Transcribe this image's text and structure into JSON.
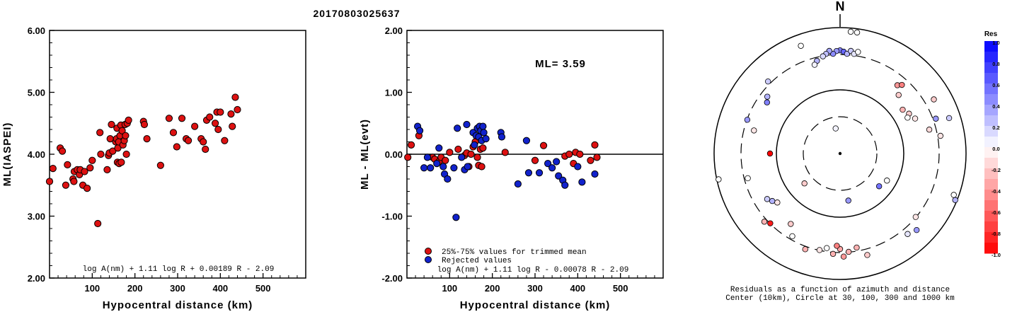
{
  "title": "20170803025637",
  "colors": {
    "accepted": "#dd1111",
    "rejected": "#1122cc",
    "axis": "#000000"
  },
  "chart_data": [
    {
      "type": "scatter",
      "xlabel": "Hypocentral distance (km)",
      "ylabel": "ML(IASPEI)",
      "xlim": [
        0,
        600
      ],
      "ylim": [
        2.0,
        6.0
      ],
      "xticks": [
        "100",
        "200",
        "300",
        "400",
        "500"
      ],
      "yticks": [
        "2.00",
        "3.00",
        "4.00",
        "5.00",
        "6.00"
      ],
      "formula": "log A(nm) + 1.11 log R + 0.00189 R - 2.09",
      "series": [
        {
          "color": "red",
          "points": [
            [
              0,
              3.56
            ],
            [
              8,
              3.77
            ],
            [
              25,
              4.1
            ],
            [
              30,
              4.05
            ],
            [
              38,
              3.5
            ],
            [
              42,
              3.83
            ],
            [
              55,
              3.6
            ],
            [
              57,
              3.56
            ],
            [
              58,
              3.72
            ],
            [
              65,
              3.75
            ],
            [
              70,
              3.67
            ],
            [
              72,
              3.75
            ],
            [
              78,
              3.5
            ],
            [
              82,
              3.72
            ],
            [
              88,
              3.45
            ],
            [
              95,
              3.78
            ],
            [
              100,
              3.9
            ],
            [
              113,
              2.88
            ],
            [
              118,
              4.35
            ],
            [
              120,
              4.0
            ],
            [
              135,
              3.75
            ],
            [
              138,
              3.98
            ],
            [
              140,
              4.02
            ],
            [
              142,
              4.25
            ],
            [
              145,
              4.48
            ],
            [
              148,
              4.05
            ],
            [
              155,
              4.2
            ],
            [
              157,
              4.25
            ],
            [
              158,
              4.42
            ],
            [
              159,
              3.87
            ],
            [
              160,
              4.1
            ],
            [
              162,
              4.2
            ],
            [
              163,
              3.85
            ],
            [
              165,
              4.3
            ],
            [
              167,
              4.47
            ],
            [
              168,
              3.87
            ],
            [
              170,
              4.38
            ],
            [
              172,
              4.15
            ],
            [
              175,
              4.22
            ],
            [
              177,
              4.48
            ],
            [
              178,
              4.3
            ],
            [
              180,
              4.0
            ],
            [
              182,
              4.5
            ],
            [
              185,
              4.55
            ],
            [
              220,
              4.53
            ],
            [
              222,
              4.48
            ],
            [
              228,
              4.25
            ],
            [
              260,
              3.82
            ],
            [
              280,
              4.58
            ],
            [
              290,
              4.35
            ],
            [
              298,
              4.12
            ],
            [
              310,
              4.58
            ],
            [
              320,
              4.25
            ],
            [
              325,
              4.22
            ],
            [
              340,
              4.45
            ],
            [
              355,
              4.25
            ],
            [
              360,
              4.2
            ],
            [
              365,
              4.08
            ],
            [
              368,
              4.55
            ],
            [
              375,
              4.6
            ],
            [
              388,
              4.5
            ],
            [
              392,
              4.68
            ],
            [
              395,
              4.4
            ],
            [
              400,
              4.68
            ],
            [
              410,
              4.22
            ],
            [
              425,
              4.65
            ],
            [
              428,
              4.45
            ],
            [
              435,
              4.92
            ],
            [
              440,
              4.72
            ]
          ]
        }
      ]
    },
    {
      "type": "scatter",
      "xlabel": "Hypocentral distance (km)",
      "ylabel": "ML - ML(evt)",
      "xlim": [
        0,
        600
      ],
      "ylim": [
        -2.0,
        2.0
      ],
      "xticks": [
        "100",
        "200",
        "300",
        "400",
        "500"
      ],
      "yticks": [
        "-2.00",
        "-1.00",
        "0.00",
        "1.00",
        "2.00"
      ],
      "annotation": "ML= 3.59",
      "formula": "log A(nm) + 1.11 log R - 0.00078 R - 2.09",
      "legend": [
        "25%-75% values for trimmed mean",
        "Rejected values"
      ],
      "series": [
        {
          "name": "25%-75% values for trimmed mean",
          "color": "red",
          "points": [
            [
              2,
              -0.05
            ],
            [
              10,
              0.15
            ],
            [
              28,
              0.3
            ],
            [
              60,
              -0.05
            ],
            [
              65,
              -0.08
            ],
            [
              75,
              -0.12
            ],
            [
              80,
              -0.05
            ],
            [
              90,
              -0.1
            ],
            [
              100,
              0.03
            ],
            [
              120,
              0.08
            ],
            [
              135,
              -0.02
            ],
            [
              140,
              0.02
            ],
            [
              145,
              -0.2
            ],
            [
              150,
              0.0
            ],
            [
              155,
              0.12
            ],
            [
              160,
              0.2
            ],
            [
              165,
              -0.05
            ],
            [
              168,
              -0.18
            ],
            [
              172,
              0.08
            ],
            [
              175,
              -0.2
            ],
            [
              178,
              0.1
            ],
            [
              230,
              0.03
            ],
            [
              300,
              -0.1
            ],
            [
              320,
              0.14
            ],
            [
              370,
              -0.03
            ],
            [
              380,
              0.0
            ],
            [
              390,
              -0.15
            ],
            [
              395,
              0.03
            ],
            [
              405,
              0.0
            ],
            [
              430,
              -0.1
            ],
            [
              440,
              0.15
            ],
            [
              445,
              -0.05
            ]
          ]
        },
        {
          "name": "Rejected values",
          "color": "blue",
          "points": [
            [
              25,
              0.45
            ],
            [
              30,
              0.38
            ],
            [
              40,
              -0.22
            ],
            [
              48,
              -0.05
            ],
            [
              55,
              -0.22
            ],
            [
              70,
              -0.15
            ],
            [
              75,
              0.1
            ],
            [
              85,
              -0.2
            ],
            [
              88,
              -0.32
            ],
            [
              95,
              -0.4
            ],
            [
              110,
              -0.22
            ],
            [
              115,
              -1.02
            ],
            [
              118,
              0.42
            ],
            [
              128,
              -0.05
            ],
            [
              135,
              -0.25
            ],
            [
              140,
              0.48
            ],
            [
              142,
              -0.2
            ],
            [
              155,
              0.35
            ],
            [
              158,
              0.15
            ],
            [
              162,
              0.3
            ],
            [
              165,
              0.42
            ],
            [
              168,
              0.28
            ],
            [
              170,
              0.45
            ],
            [
              173,
              0.38
            ],
            [
              175,
              0.22
            ],
            [
              178,
              0.45
            ],
            [
              180,
              0.35
            ],
            [
              185,
              0.25
            ],
            [
              220,
              0.35
            ],
            [
              222,
              0.28
            ],
            [
              260,
              -0.48
            ],
            [
              280,
              0.22
            ],
            [
              285,
              -0.3
            ],
            [
              310,
              -0.3
            ],
            [
              330,
              -0.15
            ],
            [
              340,
              -0.22
            ],
            [
              350,
              -0.12
            ],
            [
              355,
              -0.35
            ],
            [
              365,
              -0.42
            ],
            [
              370,
              -0.5
            ],
            [
              400,
              -0.2
            ],
            [
              410,
              -0.45
            ],
            [
              440,
              -0.32
            ]
          ]
        }
      ]
    },
    {
      "type": "polar",
      "north_label": "N",
      "caption": [
        "Residuals as a function of azimuth and distance",
        "Center (10km), Circle at 30, 100, 300 and 1000 km"
      ],
      "rings_km": [
        30,
        100,
        300,
        1000
      ],
      "colorbar": {
        "title": "Res",
        "labels": [
          "1.0",
          "0.8",
          "0.6",
          "0.4",
          "0.2",
          "0.0",
          "-0.2",
          "-0.4",
          "-0.6",
          "-0.8",
          "-1.0"
        ],
        "range": [
          -1.0,
          1.0
        ]
      },
      "points": [
        {
          "az": 350,
          "r": 0.4,
          "res": 0.05
        },
        {
          "az": 170,
          "r": 0.75,
          "res": 0.4
        },
        {
          "az": 130,
          "r": 0.8,
          "res": 0.55
        },
        {
          "az": 230,
          "r": 0.73,
          "res": -0.2
        },
        {
          "az": 120,
          "r": 0.85,
          "res": 0.0
        },
        {
          "az": 270,
          "r": 1.1,
          "res": -1.0
        },
        {
          "az": 0,
          "r": 1.62,
          "res": 0.5
        },
        {
          "az": 2,
          "r": 1.6,
          "res": 0.6
        },
        {
          "az": 358,
          "r": 1.61,
          "res": 0.4
        },
        {
          "az": 4,
          "r": 1.57,
          "res": 0.3
        },
        {
          "az": 356,
          "r": 1.57,
          "res": 0.45
        },
        {
          "az": 6,
          "r": 1.62,
          "res": 0.2
        },
        {
          "az": 354,
          "r": 1.62,
          "res": 0.35
        },
        {
          "az": 8,
          "r": 1.58,
          "res": 0.1
        },
        {
          "az": 352,
          "r": 1.58,
          "res": 0.25
        },
        {
          "az": 10,
          "r": 1.62,
          "res": 0.0
        },
        {
          "az": 350,
          "r": 1.55,
          "res": 0.15
        },
        {
          "az": 346,
          "r": 1.5,
          "res": 0.3
        },
        {
          "az": 344,
          "r": 1.45,
          "res": 0.05
        },
        {
          "az": 5,
          "r": 1.92,
          "res": 0.0
        },
        {
          "az": 8,
          "r": 1.92,
          "res": 0.0
        },
        {
          "az": 340,
          "r": 1.8,
          "res": 0.0
        },
        {
          "az": 40,
          "r": 1.4,
          "res": -0.4
        },
        {
          "az": 42,
          "r": 1.45,
          "res": -0.5
        },
        {
          "az": 45,
          "r": 1.3,
          "res": -0.2
        },
        {
          "az": 55,
          "r": 1.2,
          "res": -0.3
        },
        {
          "az": 60,
          "r": 1.25,
          "res": -0.2
        },
        {
          "az": 62,
          "r": 1.2,
          "res": 0.0
        },
        {
          "az": 65,
          "r": 1.3,
          "res": -0.1
        },
        {
          "az": 60,
          "r": 1.7,
          "res": -0.2
        },
        {
          "az": 70,
          "r": 1.6,
          "res": 0.4
        },
        {
          "az": 72,
          "r": 1.8,
          "res": 0.2
        },
        {
          "az": 75,
          "r": 1.45,
          "res": -0.15
        },
        {
          "az": 80,
          "r": 1.6,
          "res": -0.1
        },
        {
          "az": 110,
          "r": 1.9,
          "res": 0.0
        },
        {
          "az": 112,
          "r": 1.95,
          "res": 0.3
        },
        {
          "az": 130,
          "r": 1.55,
          "res": -0.1
        },
        {
          "az": 135,
          "r": 1.7,
          "res": 0.4
        },
        {
          "az": 140,
          "r": 1.65,
          "res": 0.1
        },
        {
          "az": 175,
          "r": 1.55,
          "res": -0.3
        },
        {
          "az": 178,
          "r": 1.62,
          "res": -0.4
        },
        {
          "az": 180,
          "r": 1.5,
          "res": -0.35
        },
        {
          "az": 182,
          "r": 1.45,
          "res": -0.5
        },
        {
          "az": 184,
          "r": 1.58,
          "res": -0.3
        },
        {
          "az": 170,
          "r": 1.5,
          "res": -0.3
        },
        {
          "az": 165,
          "r": 1.65,
          "res": -0.2
        },
        {
          "az": 188,
          "r": 1.5,
          "res": 0.0
        },
        {
          "az": 192,
          "r": 1.55,
          "res": -0.1
        },
        {
          "az": 200,
          "r": 1.6,
          "res": -0.3
        },
        {
          "az": 210,
          "r": 1.5,
          "res": 0.0
        },
        {
          "az": 215,
          "r": 1.35,
          "res": -0.2
        },
        {
          "az": 225,
          "r": 1.55,
          "res": -0.9
        },
        {
          "az": 228,
          "r": 1.6,
          "res": -0.3
        },
        {
          "az": 232,
          "r": 1.25,
          "res": -0.1
        },
        {
          "az": 235,
          "r": 1.3,
          "res": 0.3
        },
        {
          "az": 238,
          "r": 1.35,
          "res": 0.2
        },
        {
          "az": 255,
          "r": 1.5,
          "res": 0.0
        },
        {
          "az": 258,
          "r": 1.95,
          "res": 0.0
        },
        {
          "az": 285,
          "r": 1.4,
          "res": -0.1
        },
        {
          "az": 290,
          "r": 1.55,
          "res": 0.4
        },
        {
          "az": 305,
          "r": 1.4,
          "res": 0.5
        },
        {
          "az": 308,
          "r": 1.45,
          "res": 0.3
        },
        {
          "az": 315,
          "r": 1.6,
          "res": 0.2
        }
      ]
    }
  ]
}
